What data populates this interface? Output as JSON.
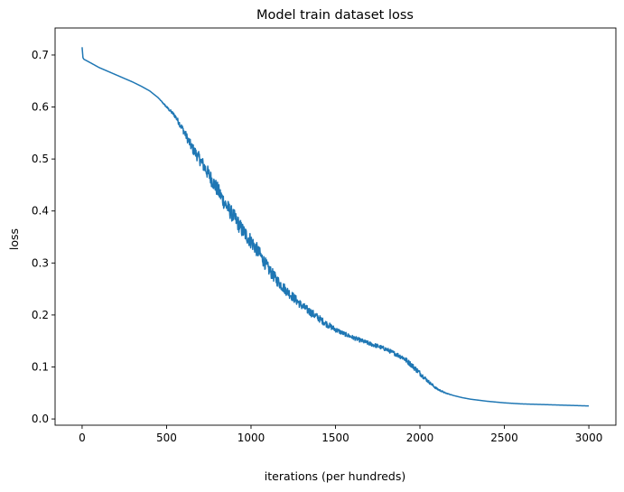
{
  "chart_data": {
    "type": "line",
    "title": "Model train dataset loss",
    "xlabel": "iterations (per hundreds)",
    "ylabel": "loss",
    "xlim": [
      -160,
      3160
    ],
    "ylim": [
      -0.012,
      0.752
    ],
    "xticks": [
      0,
      500,
      1000,
      1500,
      2000,
      2500,
      3000
    ],
    "xtick_labels": [
      "0",
      "500",
      "1000",
      "1500",
      "2000",
      "2500",
      "3000"
    ],
    "yticks": [
      0.0,
      0.1,
      0.2,
      0.3,
      0.4,
      0.5,
      0.6,
      0.7
    ],
    "ytick_labels": [
      "0.0",
      "0.1",
      "0.2",
      "0.3",
      "0.4",
      "0.5",
      "0.6",
      "0.7"
    ],
    "grid": false,
    "series": [
      {
        "color": "#1f77b4",
        "x": [
          0,
          5,
          10,
          50,
          100,
          150,
          200,
          250,
          300,
          350,
          400,
          450,
          500,
          550,
          600,
          650,
          700,
          750,
          800,
          850,
          900,
          950,
          1000,
          1050,
          1100,
          1150,
          1200,
          1250,
          1300,
          1350,
          1400,
          1450,
          1500,
          1550,
          1600,
          1650,
          1700,
          1750,
          1800,
          1850,
          1900,
          1950,
          2000,
          2050,
          2100,
          2150,
          2200,
          2250,
          2300,
          2400,
          2500,
          2600,
          2700,
          2800,
          2900,
          3000
        ],
        "y": [
          0.715,
          0.695,
          0.692,
          0.685,
          0.676,
          0.669,
          0.662,
          0.655,
          0.648,
          0.64,
          0.631,
          0.618,
          0.6,
          0.583,
          0.555,
          0.522,
          0.498,
          0.47,
          0.442,
          0.412,
          0.388,
          0.362,
          0.342,
          0.318,
          0.29,
          0.268,
          0.25,
          0.234,
          0.218,
          0.206,
          0.194,
          0.182,
          0.172,
          0.164,
          0.157,
          0.151,
          0.145,
          0.14,
          0.134,
          0.126,
          0.118,
          0.104,
          0.088,
          0.072,
          0.058,
          0.05,
          0.045,
          0.041,
          0.038,
          0.034,
          0.031,
          0.029,
          0.028,
          0.027,
          0.026,
          0.025
        ],
        "noise": [
          0,
          0,
          0,
          0,
          0,
          0,
          0,
          0,
          0,
          0,
          0,
          0,
          0.002,
          0.004,
          0.007,
          0.01,
          0.012,
          0.014,
          0.015,
          0.015,
          0.015,
          0.015,
          0.015,
          0.013,
          0.012,
          0.011,
          0.01,
          0.009,
          0.008,
          0.008,
          0.007,
          0.006,
          0.005,
          0.004,
          0.004,
          0.004,
          0.004,
          0.004,
          0.004,
          0.004,
          0.005,
          0.005,
          0.005,
          0.003,
          0.002,
          0.001,
          0,
          0,
          0,
          0,
          0,
          0,
          0,
          0,
          0,
          0
        ]
      }
    ]
  }
}
